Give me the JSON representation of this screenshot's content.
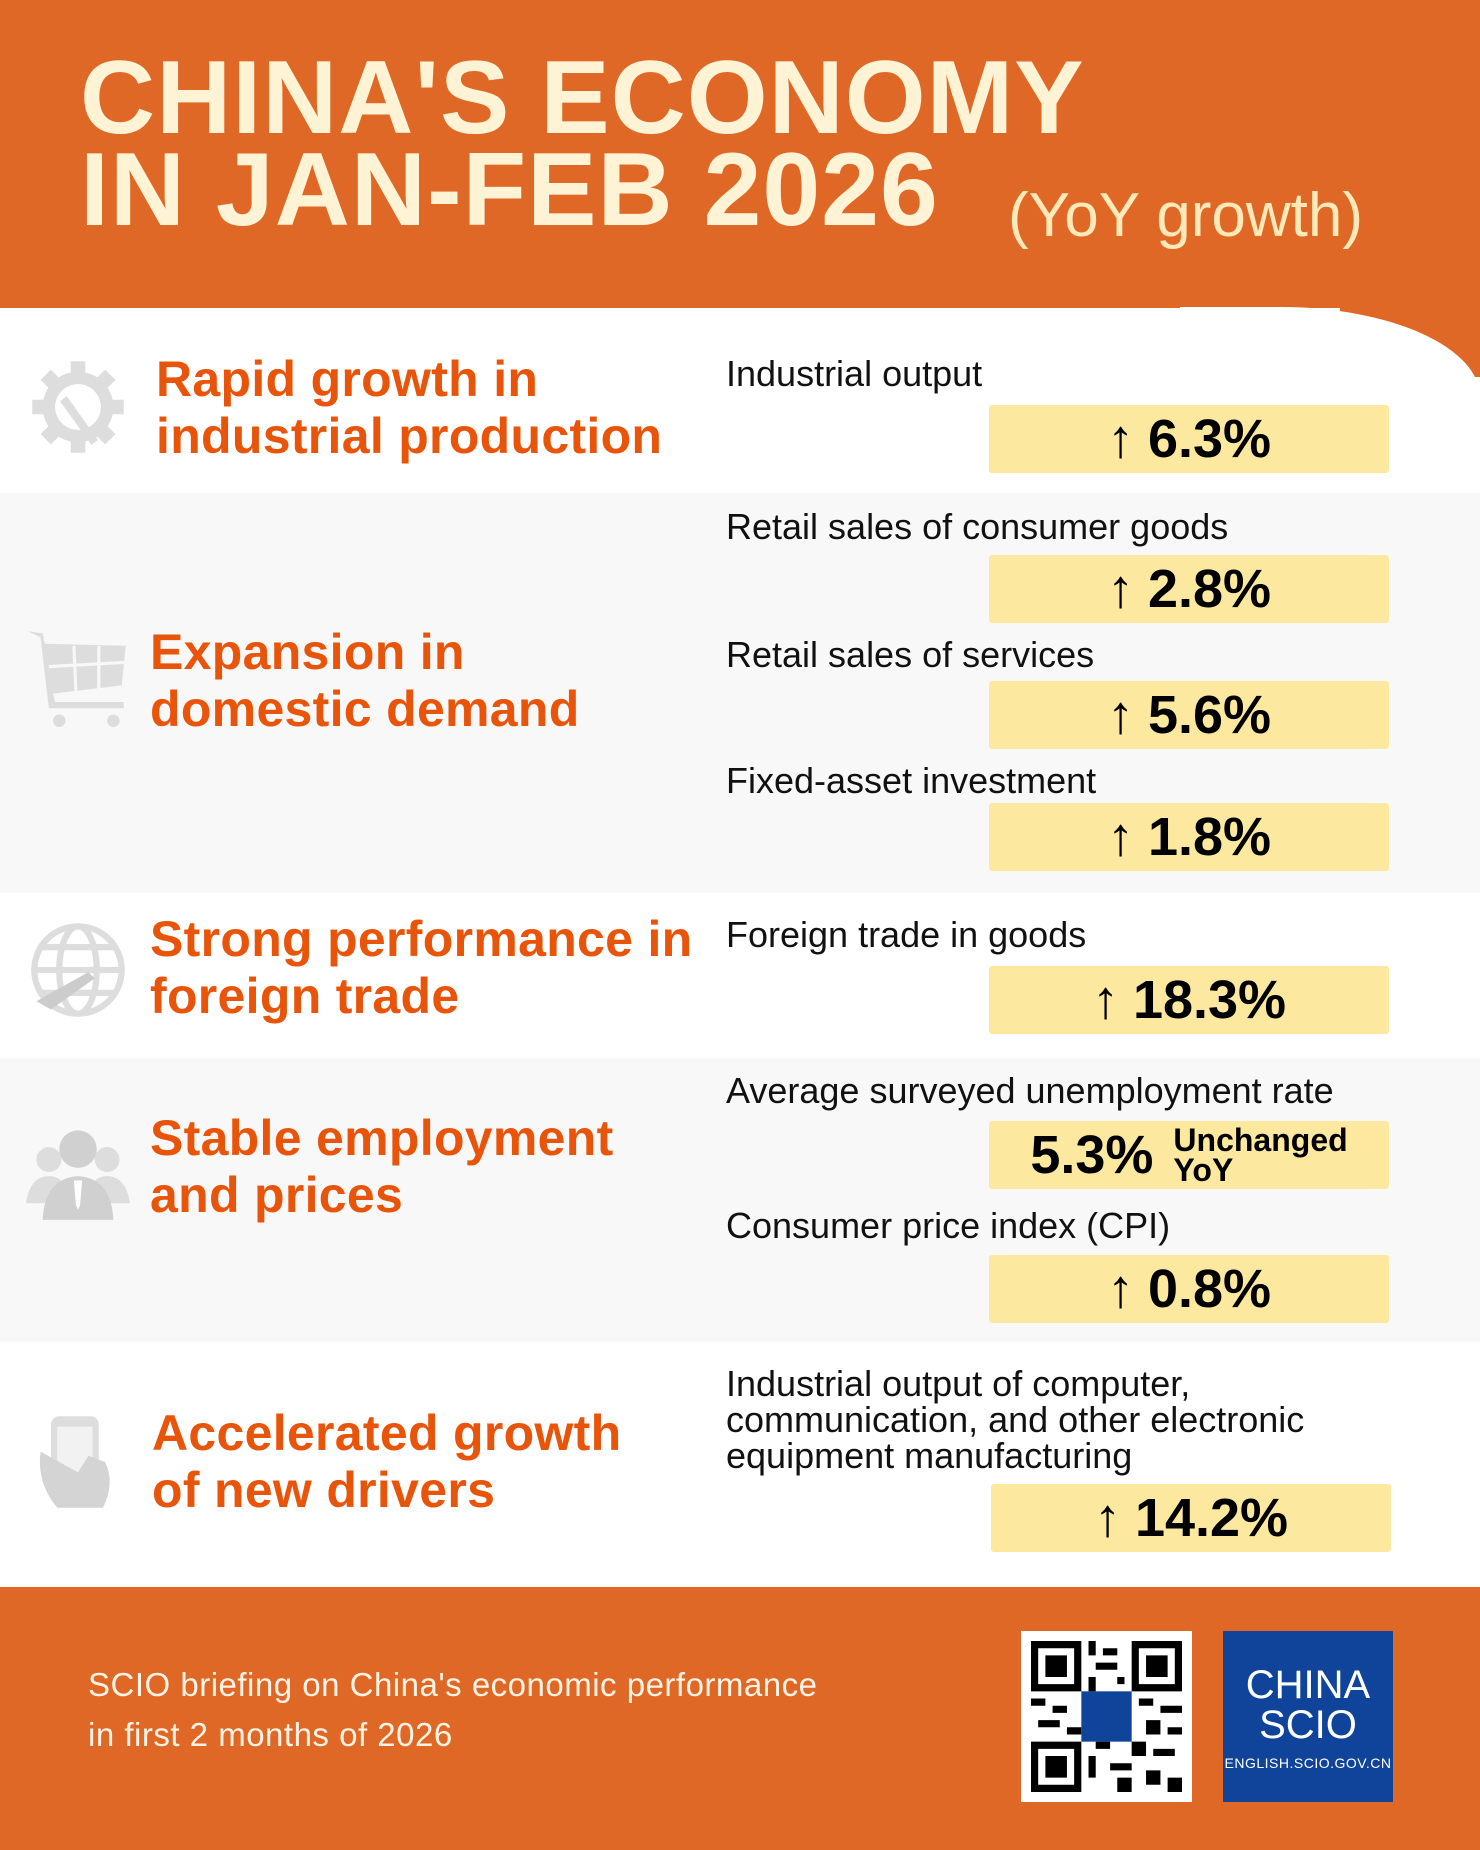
{
  "header": {
    "title_line1": "CHINA'S ECONOMY",
    "title_line2": "IN JAN-FEB 2026",
    "subtitle": "(YoY growth)"
  },
  "sections": [
    {
      "heading": [
        "Rapid growth in",
        "industrial production"
      ],
      "icon": "gear-wrench-icon",
      "items": [
        {
          "label": "Industrial output",
          "value": "6.3%",
          "arrow": "↑"
        }
      ]
    },
    {
      "heading": [
        "Expansion in",
        "domestic demand"
      ],
      "icon": "shopping-cart-icon",
      "items": [
        {
          "label": "Retail sales of consumer goods",
          "value": "2.8%",
          "arrow": "↑"
        },
        {
          "label": "Retail sales of services",
          "value": "5.6%",
          "arrow": "↑"
        },
        {
          "label": "Fixed-asset investment",
          "value": "1.8%",
          "arrow": "↑"
        }
      ]
    },
    {
      "heading": [
        "Strong performance in",
        "foreign trade"
      ],
      "icon": "globe-plane-icon",
      "items": [
        {
          "label": "Foreign trade in goods",
          "value": "18.3%",
          "arrow": "↑"
        }
      ]
    },
    {
      "heading": [
        "Stable employment",
        "and prices"
      ],
      "icon": "people-icon",
      "items": [
        {
          "label": "Average surveyed unemployment rate",
          "value": "5.3%",
          "note": [
            "Unchanged",
            "YoY"
          ]
        },
        {
          "label": "Consumer price index (CPI)",
          "value": "0.8%",
          "arrow": "↑"
        }
      ]
    },
    {
      "heading": [
        "Accelerated growth",
        "of new drivers"
      ],
      "icon": "smartphone-hand-icon",
      "items": [
        {
          "label": [
            "Industrial output of computer,",
            "communication, and other electronic",
            "equipment manufacturing"
          ],
          "value": "14.2%",
          "arrow": "↑"
        }
      ]
    }
  ],
  "footer": {
    "line1": "SCIO briefing on China's economic performance",
    "line2": "in first 2 months of 2026",
    "logo": {
      "line1": "CHINA",
      "line2": "SCIO",
      "url": "ENGLISH.SCIO.GOV.CN"
    }
  },
  "colors": {
    "orange": "#E06826",
    "heading": "#E8550A",
    "box": "#FDE8A0",
    "logo_blue": "#10449A"
  }
}
